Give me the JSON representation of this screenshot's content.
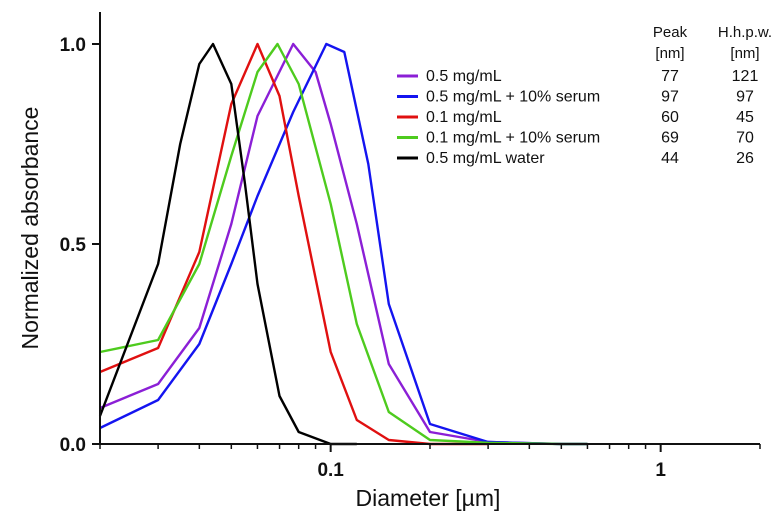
{
  "chart_data": {
    "type": "line",
    "xlabel": "Diameter [µm]",
    "ylabel": "Normalized absorbance",
    "x_scale": "log",
    "xlim": [
      0.02,
      2.0
    ],
    "ylim": [
      0,
      1.08
    ],
    "x_ticks": [
      {
        "value": 0.1,
        "label": "0.1"
      },
      {
        "value": 1,
        "label": "1"
      }
    ],
    "y_ticks": [
      {
        "value": 0,
        "label": "0.0"
      },
      {
        "value": 0.5,
        "label": "0.5"
      },
      {
        "value": 1.0,
        "label": "1.0"
      }
    ],
    "grid": false,
    "legend_position": "top-right",
    "table_headers": {
      "peak": [
        "Peak",
        "[nm]"
      ],
      "hhpw": [
        "H.h.p.w.",
        "[nm]"
      ]
    },
    "series": [
      {
        "name": "0.5 mg/mL",
        "color": "#8B1FD6",
        "peak": "77",
        "hhpw": "121",
        "x": [
          0.02,
          0.03,
          0.04,
          0.05,
          0.06,
          0.077,
          0.09,
          0.1,
          0.12,
          0.15,
          0.2,
          0.3,
          0.5,
          0.6
        ],
        "y": [
          0.09,
          0.15,
          0.29,
          0.55,
          0.82,
          1.0,
          0.93,
          0.8,
          0.55,
          0.2,
          0.03,
          0.005,
          0.0,
          0.0
        ]
      },
      {
        "name": "0.5 mg/mL + 10% serum",
        "color": "#1414F0",
        "peak": "97",
        "hhpw": "97",
        "x": [
          0.02,
          0.03,
          0.04,
          0.05,
          0.06,
          0.077,
          0.097,
          0.11,
          0.13,
          0.15,
          0.2,
          0.3,
          0.5,
          0.6
        ],
        "y": [
          0.04,
          0.11,
          0.25,
          0.45,
          0.62,
          0.83,
          1.0,
          0.98,
          0.7,
          0.35,
          0.05,
          0.005,
          0.0,
          0.0
        ]
      },
      {
        "name": "0.1 mg/mL",
        "color": "#E01010",
        "peak": "60",
        "hhpw": "45",
        "x": [
          0.02,
          0.03,
          0.04,
          0.05,
          0.06,
          0.07,
          0.08,
          0.1,
          0.12,
          0.15,
          0.2,
          0.25,
          0.3
        ],
        "y": [
          0.18,
          0.24,
          0.48,
          0.85,
          1.0,
          0.87,
          0.62,
          0.23,
          0.06,
          0.01,
          0.0,
          0.0,
          0.0
        ]
      },
      {
        "name": "0.1 mg/mL + 10% serum",
        "color": "#4ECB1E",
        "peak": "69",
        "hhpw": "70",
        "x": [
          0.02,
          0.03,
          0.04,
          0.05,
          0.06,
          0.069,
          0.08,
          0.1,
          0.12,
          0.15,
          0.2,
          0.3,
          0.5,
          0.6
        ],
        "y": [
          0.23,
          0.26,
          0.45,
          0.72,
          0.93,
          1.0,
          0.9,
          0.6,
          0.3,
          0.08,
          0.01,
          0.003,
          0.0,
          0.0
        ]
      },
      {
        "name": "0.5 mg/mL water",
        "color": "#000000",
        "peak": "44",
        "hhpw": "26",
        "x": [
          0.02,
          0.03,
          0.035,
          0.04,
          0.044,
          0.05,
          0.055,
          0.06,
          0.07,
          0.08,
          0.1,
          0.12
        ],
        "y": [
          0.07,
          0.45,
          0.75,
          0.95,
          1.0,
          0.9,
          0.65,
          0.4,
          0.12,
          0.03,
          0.0,
          0.0
        ]
      }
    ]
  }
}
